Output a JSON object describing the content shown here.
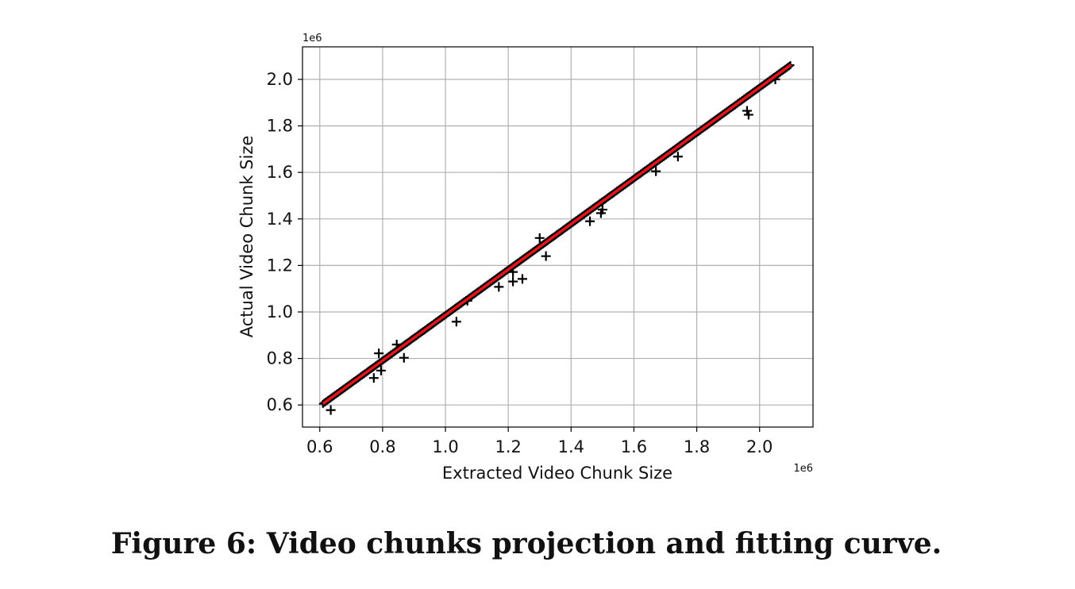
{
  "caption": "Figure 6: Video chunks projection and fitting curve.",
  "chart_data": {
    "type": "scatter",
    "xlabel": "Extracted Video Chunk Size",
    "ylabel": "Actual Video Chunk Size",
    "x_offset_text": "1e6",
    "y_offset_text": "1e6",
    "xlim": [
      0.545,
      2.17
    ],
    "ylim": [
      0.505,
      2.14
    ],
    "x_ticks": [
      0.6,
      0.8,
      1.0,
      1.2,
      1.4,
      1.6,
      1.8,
      2.0
    ],
    "x_tick_labels": [
      "0.6",
      "0.8",
      "1.0",
      "1.2",
      "1.4",
      "1.6",
      "1.8",
      "2.0"
    ],
    "y_ticks": [
      0.6,
      0.8,
      1.0,
      1.2,
      1.4,
      1.6,
      1.8,
      2.0
    ],
    "y_tick_labels": [
      "0.6",
      "0.8",
      "1.0",
      "1.2",
      "1.4",
      "1.6",
      "1.8",
      "2.0"
    ],
    "grid": true,
    "legend": "none",
    "marker": "+",
    "colors": {
      "points": "#000000",
      "fit": "#e8141a",
      "grid": "#b0b0b0",
      "axes": "#000000"
    },
    "dense_points_range": [
      0.61,
      2.1
    ],
    "outliers": [
      {
        "x": 0.635,
        "y": 0.578
      },
      {
        "x": 0.772,
        "y": 0.716
      },
      {
        "x": 0.788,
        "y": 0.822
      },
      {
        "x": 0.795,
        "y": 0.748
      },
      {
        "x": 0.845,
        "y": 0.86
      },
      {
        "x": 0.868,
        "y": 0.803
      },
      {
        "x": 1.035,
        "y": 0.958
      },
      {
        "x": 1.07,
        "y": 1.048
      },
      {
        "x": 1.17,
        "y": 1.108
      },
      {
        "x": 1.215,
        "y": 1.131
      },
      {
        "x": 1.215,
        "y": 1.172
      },
      {
        "x": 1.245,
        "y": 1.142
      },
      {
        "x": 1.3,
        "y": 1.318
      },
      {
        "x": 1.32,
        "y": 1.24
      },
      {
        "x": 1.46,
        "y": 1.39
      },
      {
        "x": 1.495,
        "y": 1.425
      },
      {
        "x": 1.5,
        "y": 1.44
      },
      {
        "x": 1.67,
        "y": 1.605
      },
      {
        "x": 1.74,
        "y": 1.668
      },
      {
        "x": 1.96,
        "y": 1.865
      },
      {
        "x": 1.965,
        "y": 1.848
      },
      {
        "x": 2.05,
        "y": 2.0
      }
    ],
    "fit_line": {
      "x": [
        0.61,
        2.1
      ],
      "y": [
        0.605,
        2.063
      ]
    }
  }
}
